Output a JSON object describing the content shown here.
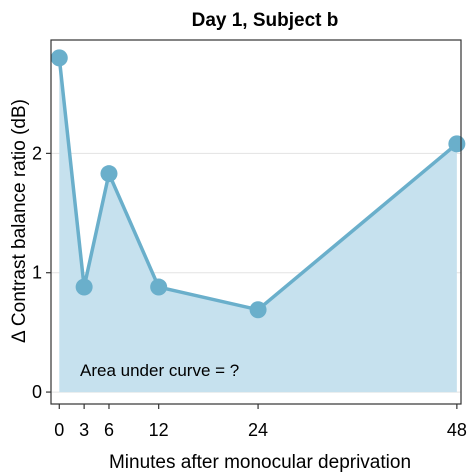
{
  "chart_data": {
    "type": "area",
    "title": "Day 1, Subject b",
    "xlabel": "Minutes after monocular deprivation",
    "ylabel": "Δ Contrast balance ratio (dB)",
    "x_ticks": [
      0,
      3,
      6,
      12,
      24,
      48
    ],
    "y_ticks": [
      0,
      1,
      2
    ],
    "xlim": [
      -1,
      48.5
    ],
    "ylim": [
      -0.1,
      2.95
    ],
    "grid": "horizontal",
    "series": [
      {
        "x": [
          0,
          3,
          6,
          12,
          24,
          48
        ],
        "y": [
          2.8,
          0.88,
          1.83,
          0.88,
          0.69,
          2.08
        ]
      }
    ],
    "annotation": "Area under curve = ?",
    "colors": {
      "line": "#6aafcb",
      "marker": "#6aafcb",
      "fill": "#c6e1ee",
      "grid": "#e3e3e3",
      "frame": "#333333"
    }
  }
}
